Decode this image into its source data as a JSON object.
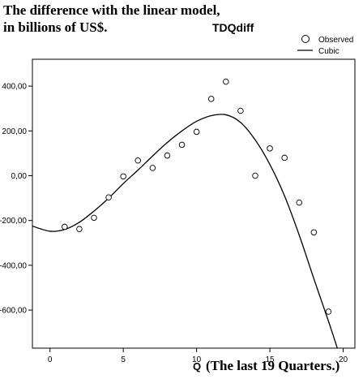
{
  "chart_data": {
    "type": "scatter",
    "title": "TDQdiff",
    "caption_line1": "The difference with the linear model,",
    "caption_line2": "in billions of US$.",
    "xlabel": "Q",
    "xlabel_note": "(The last 19 Quarters.)",
    "ylabel": "",
    "xlim": [
      -1.2,
      20.8
    ],
    "ylim": [
      -770,
      520
    ],
    "x_ticks": [
      0,
      5,
      10,
      15,
      20
    ],
    "x_tick_labels": [
      "0",
      "5",
      "10",
      "15",
      "20"
    ],
    "y_ticks": [
      400,
      200,
      0,
      -200,
      -400,
      -600
    ],
    "y_tick_labels": [
      "400,00",
      "200,00",
      "0,00",
      "-200,00",
      "-400,00",
      "-600,00"
    ],
    "legend_position": "top-right",
    "grid": false,
    "series": [
      {
        "name": "Observed",
        "kind": "points",
        "x": [
          1,
          2,
          3,
          4,
          5,
          6,
          7,
          8,
          9,
          10,
          11,
          12,
          13,
          14,
          15,
          16,
          17,
          18,
          19
        ],
        "y": [
          -228,
          -238,
          -188,
          -97,
          -3,
          68,
          35,
          90,
          138,
          196,
          343,
          420,
          290,
          0,
          122,
          80,
          -120,
          -253,
          -607
        ]
      },
      {
        "name": "Cubic",
        "kind": "fitted-curve",
        "x": [
          -1.2,
          0,
          1,
          2,
          3,
          4,
          5,
          6,
          7,
          8,
          9,
          10,
          11,
          12,
          13,
          14,
          15,
          16,
          17,
          18,
          19,
          19.6
        ],
        "y": [
          -225,
          -248,
          -240,
          -208,
          -158,
          -100,
          -35,
          25,
          88,
          148,
          200,
          243,
          268,
          272,
          238,
          160,
          50,
          -90,
          -265,
          -460,
          -650,
          -770
        ]
      }
    ],
    "colors": {
      "axis": "#000000",
      "curve": "#000000",
      "points": "#000000",
      "background": "#ffffff"
    }
  }
}
